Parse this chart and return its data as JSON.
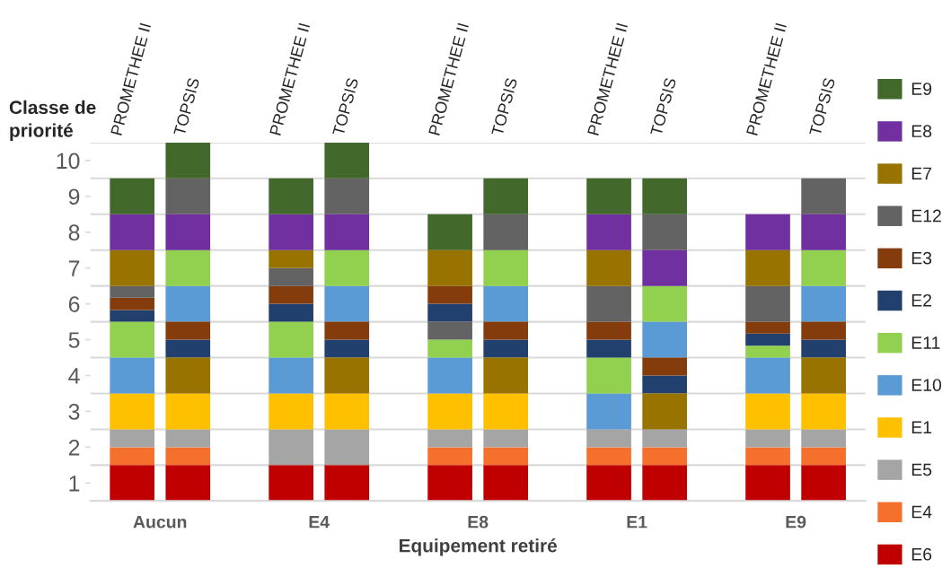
{
  "chart_data": {
    "type": "bar",
    "xlabel": "Equipement retiré",
    "ylabel": "Classe de\npriorité",
    "categories": [
      "PROMETHEE II",
      "TOPSIS",
      "PROMETHEE II",
      "TOPSIS",
      "PROMETHEE II",
      "TOPSIS",
      "PROMETHEE II",
      "TOPSIS",
      "PROMETHEE II",
      "TOPSIS"
    ],
    "annotations": [
      "Aucun",
      "E4",
      "E8",
      "E1",
      "E9"
    ],
    "ylim": [
      0.5,
      10.5
    ],
    "yticks": [
      1,
      2,
      3,
      4,
      5,
      6,
      7,
      8,
      9,
      10,
      {
        "value": 0.5,
        "label": null
      },
      {
        "value": 1.5,
        "label": null
      },
      {
        "value": 2.5,
        "label": null
      },
      {
        "value": 3.5,
        "label": null
      },
      {
        "value": 4.5,
        "label": null
      },
      {
        "value": 5.5,
        "label": null
      },
      {
        "value": 6.5,
        "label": null
      },
      {
        "value": 7.5,
        "label": null
      },
      {
        "value": 8.5,
        "label": null
      },
      {
        "value": 9.5,
        "label": null
      },
      {
        "value": 10.5,
        "label": null
      }
    ],
    "grid": "y",
    "legend": "right",
    "series": [
      {
        "name": "E6",
        "color": "#c00000",
        "base": [
          0.5,
          0.5,
          0.5,
          0.5,
          0.5,
          0.5,
          0.5,
          0.5,
          0.5,
          0.5
        ],
        "values": [
          1,
          1,
          1,
          1,
          1,
          1,
          1,
          1,
          1,
          1
        ]
      },
      {
        "name": "E4",
        "color": "#f4702c",
        "base": [
          1.5,
          1.5,
          null,
          null,
          1.5,
          1.5,
          1.5,
          1.5,
          1.5,
          1.5
        ],
        "values": [
          0.5,
          0.5,
          null,
          null,
          0.5,
          0.5,
          0.5,
          0.5,
          0.5,
          0.5
        ]
      },
      {
        "name": "E5",
        "color": "#a5a5a5",
        "base": [
          2,
          2,
          1.5,
          1.5,
          2,
          2,
          2,
          2,
          2,
          2
        ],
        "values": [
          0.5,
          0.5,
          1,
          1,
          0.5,
          0.5,
          0.5,
          0.5,
          0.5,
          0.5
        ]
      },
      {
        "name": "E1",
        "color": "#ffc000",
        "base": [
          2.5,
          2.5,
          2.5,
          2.5,
          2.5,
          2.5,
          null,
          null,
          2.5,
          2.5
        ],
        "values": [
          1,
          1,
          1,
          1,
          1,
          1,
          null,
          null,
          1,
          1
        ]
      },
      {
        "name": "E10",
        "color": "#5b9bd5",
        "base": [
          3.5,
          5.5,
          3.5,
          5.5,
          3.5,
          5.5,
          2.5,
          4.5,
          3.5,
          5.5
        ],
        "values": [
          1,
          1,
          1,
          1,
          1,
          1,
          1,
          1,
          1,
          1
        ]
      },
      {
        "name": "E11",
        "color": "#92d050",
        "base": [
          4.5,
          6.5,
          4.5,
          6.5,
          4.5,
          6.5,
          3.5,
          5.5,
          4.5,
          6.5
        ],
        "values": [
          1,
          1,
          1,
          1,
          0.5,
          1,
          1,
          1,
          0.33,
          1
        ]
      },
      {
        "name": "E2",
        "color": "#22406e",
        "base": [
          5.5,
          4.5,
          5.5,
          4.5,
          5.5,
          4.5,
          4.5,
          3.5,
          4.83,
          4.5
        ],
        "values": [
          0.33,
          0.5,
          0.5,
          0.5,
          0.5,
          0.5,
          0.5,
          0.5,
          0.34,
          0.5
        ]
      },
      {
        "name": "E3",
        "color": "#843c0c",
        "base": [
          5.83,
          5,
          6,
          5,
          6,
          5,
          5,
          4,
          5.17,
          5
        ],
        "values": [
          0.34,
          0.5,
          0.5,
          0.5,
          0.5,
          0.5,
          0.5,
          0.5,
          0.33,
          0.5
        ]
      },
      {
        "name": "E12",
        "color": "#636363",
        "base": [
          6.17,
          8.5,
          6.5,
          8.5,
          5,
          7.5,
          5.5,
          7.5,
          5.5,
          8.5
        ],
        "values": [
          0.33,
          1,
          0.5,
          1,
          0.5,
          1,
          1,
          1,
          1,
          1
        ]
      },
      {
        "name": "E7",
        "color": "#997300",
        "base": [
          6.5,
          3.5,
          7,
          3.5,
          6.5,
          3.5,
          6.5,
          2.5,
          6.5,
          3.5
        ],
        "values": [
          1,
          1,
          0.5,
          1,
          1,
          1,
          1,
          1,
          1,
          1
        ]
      },
      {
        "name": "E8",
        "color": "#7030a0",
        "base": [
          7.5,
          7.5,
          7.5,
          7.5,
          null,
          null,
          7.5,
          6.5,
          7.5,
          7.5
        ],
        "values": [
          1,
          1,
          1,
          1,
          null,
          null,
          1,
          1,
          1,
          1
        ]
      },
      {
        "name": "E9",
        "color": "#43682b",
        "base": [
          8.5,
          9.5,
          8.5,
          9.5,
          7.5,
          8.5,
          8.5,
          8.5,
          null,
          null
        ],
        "values": [
          1,
          1,
          1,
          1,
          1,
          1,
          1,
          1,
          null,
          null
        ]
      }
    ]
  }
}
